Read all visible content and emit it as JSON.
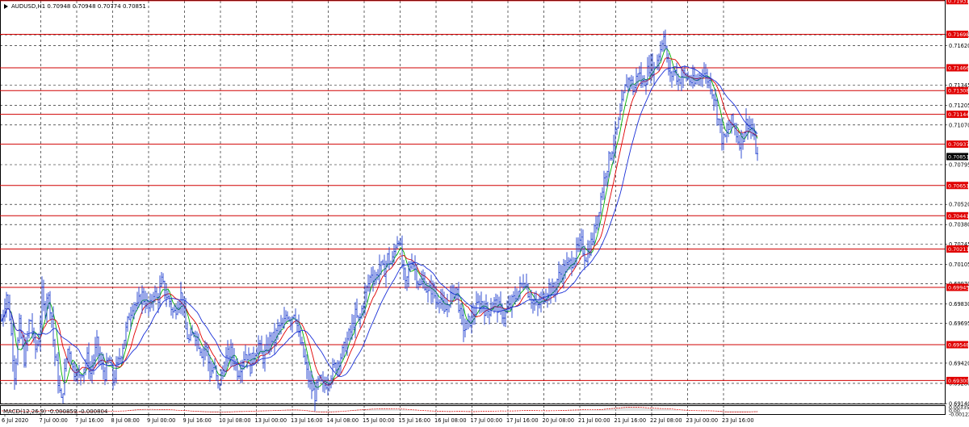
{
  "chart_data": {
    "type": "candlestick",
    "symbol_header": "AUDUSD,H1  0.70948 0.70948 0.70774 0.70851",
    "current_price": 0.70851,
    "ylim": [
      0.6914,
      0.7193
    ],
    "y_ticks": [
      "0.71695",
      "0.71620",
      "0.71345",
      "0.71205",
      "0.71070",
      "0.70795",
      "0.70520",
      "0.70380",
      "0.70245",
      "0.70105",
      "0.69970",
      "0.69830",
      "0.69695",
      "0.69420",
      "0.69280",
      "0.69140"
    ],
    "x_ticks": [
      "6 Jul 2020",
      "7 Jul 00:00",
      "7 Jul 16:00",
      "8 Jul 08:00",
      "9 Jul 00:00",
      "9 Jul 16:00",
      "10 Jul 08:00",
      "13 Jul 00:00",
      "13 Jul 16:00",
      "14 Jul 08:00",
      "15 Jul 00:00",
      "15 Jul 16:00",
      "16 Jul 08:00",
      "17 Jul 00:00",
      "17 Jul 16:00",
      "20 Jul 08:00",
      "21 Jul 00:00",
      "21 Jul 16:00",
      "22 Jul 08:00",
      "23 Jul 00:00",
      "23 Jul 16:00"
    ],
    "levels": [
      0.71931,
      0.71698,
      0.71466,
      0.71308,
      0.71144,
      0.70937,
      0.70651,
      0.70441,
      0.70211,
      0.69945,
      0.69548,
      0.693
    ],
    "level_labels": [
      "0.71931",
      "0.71698",
      "0.71466",
      "0.71308",
      "0.71144",
      "0.70937",
      "0.70651",
      "0.70441",
      "0.70211",
      "0.69945",
      "0.69548",
      "0.69300"
    ],
    "price_path": [
      [
        0,
        0.6965
      ],
      [
        4,
        0.6978
      ],
      [
        8,
        0.699
      ],
      [
        12,
        0.6975
      ],
      [
        15,
        0.6955
      ],
      [
        18,
        0.6935
      ],
      [
        21,
        0.695
      ],
      [
        24,
        0.6968
      ],
      [
        27,
        0.6955
      ],
      [
        30,
        0.6945
      ],
      [
        34,
        0.696
      ],
      [
        37,
        0.6975
      ],
      [
        40,
        0.6965
      ],
      [
        43,
        0.695
      ],
      [
        46,
        0.6955
      ],
      [
        49,
        0.6962
      ],
      [
        52,
        0.699
      ],
      [
        55,
        0.6975
      ],
      [
        58,
        0.699
      ],
      [
        61,
        0.6985
      ],
      [
        64,
        0.6975
      ],
      [
        67,
        0.695
      ],
      [
        70,
        0.694
      ],
      [
        73,
        0.6925
      ],
      [
        76,
        0.6915
      ],
      [
        79,
        0.693
      ],
      [
        82,
        0.6945
      ],
      [
        85,
        0.6955
      ],
      [
        88,
        0.6945
      ],
      [
        91,
        0.6935
      ],
      [
        94,
        0.694
      ],
      [
        97,
        0.693
      ],
      [
        100,
        0.6935
      ],
      [
        104,
        0.694
      ],
      [
        108,
        0.6945
      ],
      [
        112,
        0.6935
      ],
      [
        116,
        0.6945
      ],
      [
        120,
        0.6955
      ],
      [
        125,
        0.694
      ],
      [
        130,
        0.6935
      ],
      [
        135,
        0.6945
      ],
      [
        140,
        0.693
      ],
      [
        145,
        0.694
      ],
      [
        150,
        0.695
      ],
      [
        155,
        0.6962
      ],
      [
        160,
        0.6975
      ],
      [
        165,
        0.6985
      ],
      [
        170,
        0.698
      ],
      [
        175,
        0.699
      ],
      [
        180,
        0.6985
      ],
      [
        185,
        0.6978
      ],
      [
        190,
        0.6992
      ],
      [
        195,
        0.6985
      ],
      [
        200,
        0.6998
      ],
      [
        205,
        0.699
      ],
      [
        210,
        0.6985
      ],
      [
        215,
        0.6975
      ],
      [
        220,
        0.6985
      ],
      [
        225,
        0.699
      ],
      [
        230,
        0.6965
      ],
      [
        235,
        0.6955
      ],
      [
        240,
        0.6965
      ],
      [
        245,
        0.6958
      ],
      [
        250,
        0.695
      ],
      [
        255,
        0.6955
      ],
      [
        260,
        0.6935
      ],
      [
        265,
        0.694
      ],
      [
        270,
        0.6925
      ],
      [
        275,
        0.6935
      ],
      [
        280,
        0.6945
      ],
      [
        285,
        0.695
      ],
      [
        290,
        0.6945
      ],
      [
        295,
        0.6935
      ],
      [
        300,
        0.6945
      ],
      [
        305,
        0.695
      ],
      [
        310,
        0.694
      ],
      [
        315,
        0.695
      ],
      [
        320,
        0.6955
      ],
      [
        325,
        0.6945
      ],
      [
        330,
        0.695
      ],
      [
        335,
        0.696
      ],
      [
        340,
        0.6958
      ],
      [
        345,
        0.6968
      ],
      [
        350,
        0.6965
      ],
      [
        355,
        0.6978
      ],
      [
        360,
        0.6972
      ],
      [
        365,
        0.698
      ],
      [
        370,
        0.696
      ],
      [
        375,
        0.695
      ],
      [
        380,
        0.6935
      ],
      [
        385,
        0.6925
      ],
      [
        390,
        0.692
      ],
      [
        395,
        0.693
      ],
      [
        400,
        0.6925
      ],
      [
        405,
        0.693
      ],
      [
        410,
        0.6935
      ],
      [
        415,
        0.694
      ],
      [
        420,
        0.6945
      ],
      [
        425,
        0.695
      ],
      [
        430,
        0.6958
      ],
      [
        435,
        0.6965
      ],
      [
        440,
        0.6975
      ],
      [
        445,
        0.697
      ],
      [
        450,
        0.6985
      ],
      [
        455,
        0.6995
      ],
      [
        460,
        0.7005
      ],
      [
        465,
        0.7
      ],
      [
        470,
        0.701
      ],
      [
        475,
        0.7005
      ],
      [
        480,
        0.7015
      ],
      [
        485,
        0.701
      ],
      [
        490,
        0.7025
      ],
      [
        494,
        0.703
      ],
      [
        498,
        0.701
      ],
      [
        502,
        0.6995
      ],
      [
        506,
        0.7005
      ],
      [
        510,
        0.7015
      ],
      [
        515,
        0.7005
      ],
      [
        520,
        0.6995
      ],
      [
        525,
        0.7
      ],
      [
        530,
        0.699
      ],
      [
        535,
        0.6995
      ],
      [
        540,
        0.6985
      ],
      [
        545,
        0.699
      ],
      [
        550,
        0.6975
      ],
      [
        555,
        0.6985
      ],
      [
        560,
        0.699
      ],
      [
        565,
        0.6995
      ],
      [
        570,
        0.6975
      ],
      [
        575,
        0.6965
      ],
      [
        580,
        0.697
      ],
      [
        585,
        0.6975
      ],
      [
        590,
        0.698
      ],
      [
        595,
        0.6985
      ],
      [
        600,
        0.698
      ],
      [
        605,
        0.6978
      ],
      [
        610,
        0.6985
      ],
      [
        615,
        0.6982
      ],
      [
        620,
        0.6978
      ],
      [
        625,
        0.6975
      ],
      [
        630,
        0.698
      ],
      [
        635,
        0.6985
      ],
      [
        640,
        0.699
      ],
      [
        645,
        0.6995
      ],
      [
        650,
        0.7
      ],
      [
        655,
        0.699
      ],
      [
        660,
        0.6985
      ],
      [
        665,
        0.698
      ],
      [
        670,
        0.6985
      ],
      [
        675,
        0.699
      ],
      [
        680,
        0.6995
      ],
      [
        685,
        0.699
      ],
      [
        690,
        0.7
      ],
      [
        695,
        0.7005
      ],
      [
        700,
        0.7008
      ],
      [
        705,
        0.701
      ],
      [
        710,
        0.7015
      ],
      [
        715,
        0.702
      ],
      [
        720,
        0.7025
      ],
      [
        725,
        0.7015
      ],
      [
        730,
        0.7022
      ],
      [
        735,
        0.703
      ],
      [
        740,
        0.7045
      ],
      [
        745,
        0.706
      ],
      [
        750,
        0.7075
      ],
      [
        755,
        0.7085
      ],
      [
        760,
        0.7095
      ],
      [
        765,
        0.7105
      ],
      [
        770,
        0.712
      ],
      [
        775,
        0.7135
      ],
      [
        780,
        0.714
      ],
      [
        785,
        0.713
      ],
      [
        790,
        0.7145
      ],
      [
        795,
        0.7135
      ],
      [
        800,
        0.714
      ],
      [
        805,
        0.715
      ],
      [
        810,
        0.7145
      ],
      [
        815,
        0.7155
      ],
      [
        818,
        0.716
      ],
      [
        822,
        0.7172
      ],
      [
        826,
        0.715
      ],
      [
        830,
        0.714
      ],
      [
        835,
        0.7145
      ],
      [
        840,
        0.7138
      ],
      [
        845,
        0.7142
      ],
      [
        850,
        0.714
      ],
      [
        855,
        0.7138
      ],
      [
        860,
        0.7135
      ],
      [
        865,
        0.714
      ],
      [
        870,
        0.7145
      ],
      [
        875,
        0.714
      ],
      [
        880,
        0.7135
      ],
      [
        885,
        0.7125
      ],
      [
        890,
        0.711
      ],
      [
        895,
        0.7095
      ],
      [
        900,
        0.71
      ],
      [
        905,
        0.711
      ],
      [
        910,
        0.7105
      ],
      [
        915,
        0.7095
      ],
      [
        920,
        0.71
      ],
      [
        925,
        0.711
      ],
      [
        930,
        0.7105
      ],
      [
        935,
        0.7093
      ],
      [
        938,
        0.7085
      ]
    ],
    "macd_label": "MACD(12,26,9) -0.000859 -0.000804",
    "macd_ticks": [
      "0.00335",
      "0.00",
      "-0.00122"
    ]
  }
}
